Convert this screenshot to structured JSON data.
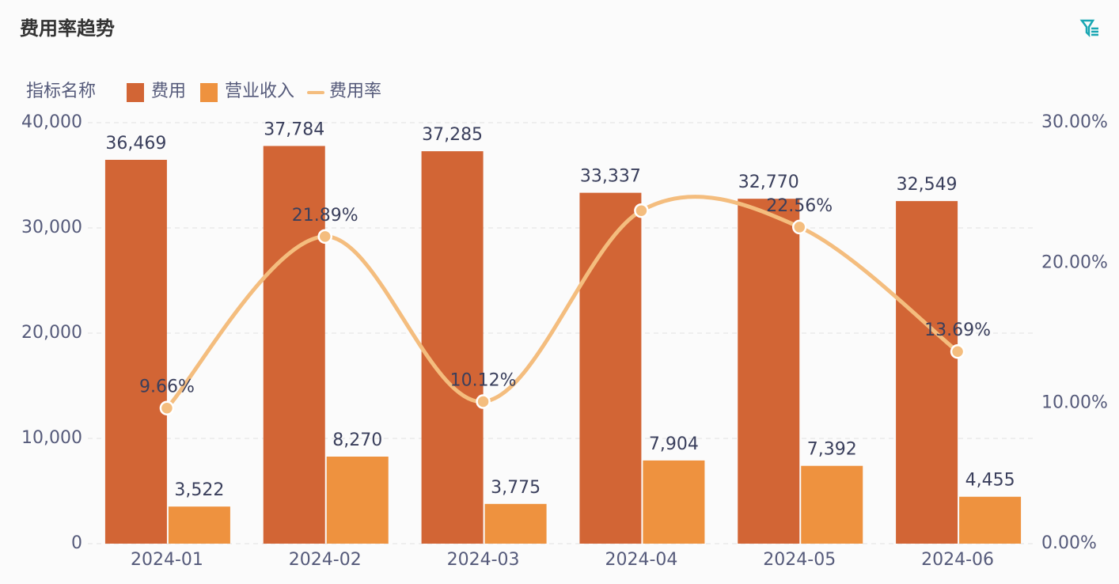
{
  "chart_data": {
    "type": "bar-line",
    "title": "费用率趋势",
    "legend_title": "指标名称",
    "categories": [
      "2024-01",
      "2024-02",
      "2024-03",
      "2024-04",
      "2024-05",
      "2024-06"
    ],
    "series": [
      {
        "name": "费用",
        "type": "bar",
        "color": "#d26535",
        "values": [
          36469,
          37784,
          37285,
          33337,
          32770,
          32549
        ],
        "value_labels": [
          "36,469",
          "37,784",
          "37,285",
          "33,337",
          "32,770",
          "32,549"
        ]
      },
      {
        "name": "营业收入",
        "type": "bar",
        "color": "#ee923f",
        "values": [
          3522,
          8270,
          3775,
          7904,
          7392,
          4455
        ],
        "value_labels": [
          "3,522",
          "8,270",
          "3,775",
          "7,904",
          "7,392",
          "4,455"
        ]
      },
      {
        "name": "费用率",
        "type": "line",
        "axis": "y2",
        "color": "#f4bd7e",
        "values": [
          9.66,
          21.89,
          10.12,
          23.73,
          22.56,
          13.69
        ],
        "value_labels": [
          "9.66%",
          "21.89%",
          "10.12%",
          null,
          "22.56%",
          "13.69%"
        ]
      }
    ],
    "ylim": [
      0,
      40000
    ],
    "yticks": [
      0,
      {
        "value": 10000,
        "label": "10,000"
      },
      {
        "value": 20000,
        "label": "20,000"
      },
      {
        "value": 30000,
        "label": "30,000"
      },
      {
        "value": 40000,
        "label": "40,000"
      }
    ],
    "y2lim": [
      0,
      30
    ],
    "y2ticks": [
      {
        "value": 0,
        "label": "0.00%"
      },
      {
        "value": 10,
        "label": "10.00%"
      },
      {
        "value": 20,
        "label": "20.00%"
      },
      {
        "value": 30,
        "label": "30.00%"
      }
    ],
    "grid": true,
    "legend": "top-left"
  }
}
